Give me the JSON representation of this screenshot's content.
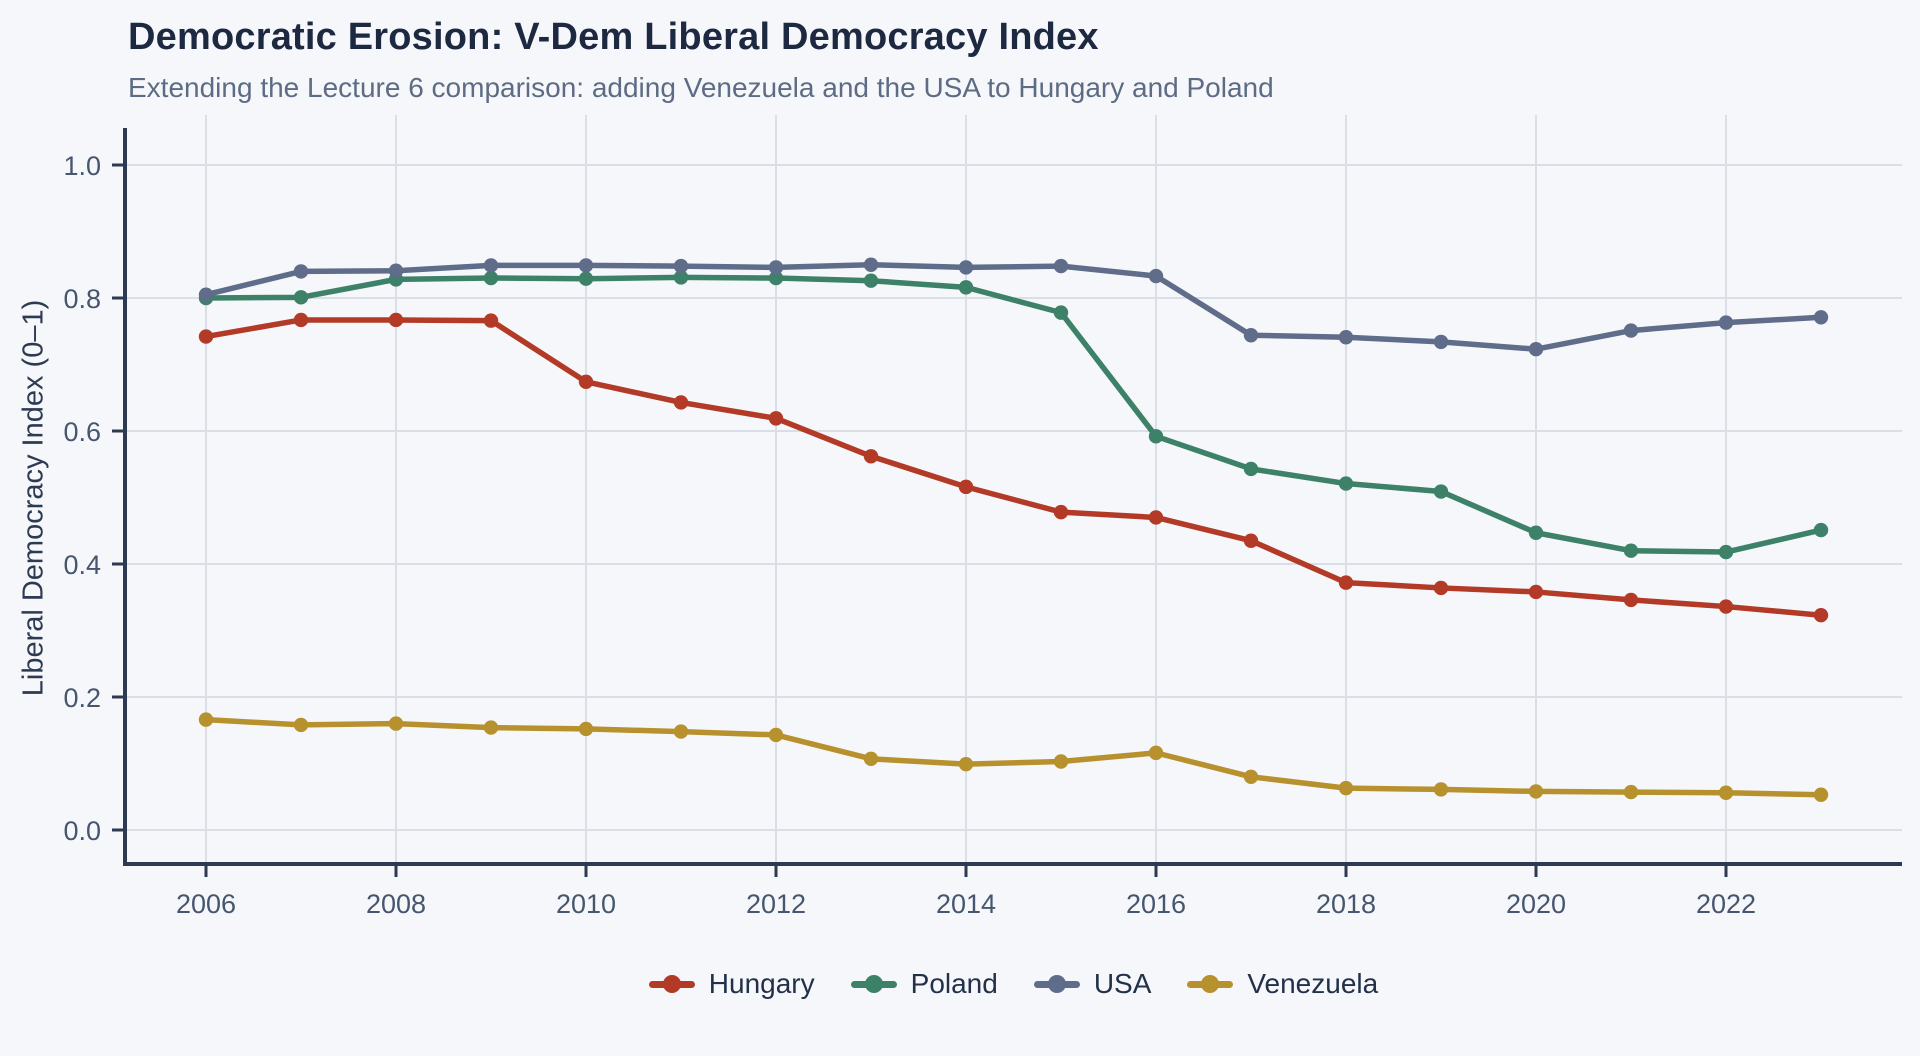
{
  "header": {
    "title": "Democratic Erosion: V-Dem Liberal Democracy Index",
    "subtitle": "Extending the Lecture 6 comparison: adding Venezuela and the USA to Hungary and Poland"
  },
  "page": {
    "background_color": "#f6f7fa",
    "axis_color": "#2c3a52",
    "gridline_color": "#dadee6"
  },
  "chart_data": {
    "type": "line",
    "title": "Democratic Erosion: V-Dem Liberal Democracy Index",
    "subtitle": "Extending the Lecture 6 comparison: adding Venezuela and the USA to Hungary and Poland",
    "xlabel": "",
    "ylabel": "Liberal Democracy Index (0–1)",
    "grid": true,
    "legend_position": "bottom",
    "ylim": [
      0.0,
      1.0
    ],
    "y_ticks": [
      0.0,
      0.2,
      0.4,
      0.6,
      0.8,
      1.0
    ],
    "x_ticks": [
      2006,
      2008,
      2010,
      2012,
      2014,
      2016,
      2018,
      2020,
      2022
    ],
    "x": [
      2006,
      2007,
      2008,
      2009,
      2010,
      2011,
      2012,
      2013,
      2014,
      2015,
      2016,
      2017,
      2018,
      2019,
      2020,
      2021,
      2022,
      2023
    ],
    "series": [
      {
        "name": "Hungary",
        "color": "#b23a27",
        "values": [
          0.742,
          0.767,
          0.767,
          0.766,
          0.674,
          0.643,
          0.619,
          0.562,
          0.516,
          0.478,
          0.47,
          0.435,
          0.372,
          0.364,
          0.358,
          0.346,
          0.336,
          0.323
        ]
      },
      {
        "name": "Poland",
        "color": "#3d8168",
        "values": [
          0.8,
          0.801,
          0.828,
          0.83,
          0.829,
          0.831,
          0.83,
          0.826,
          0.816,
          0.778,
          0.592,
          0.543,
          0.521,
          0.509,
          0.447,
          0.42,
          0.418,
          0.451
        ]
      },
      {
        "name": "USA",
        "color": "#5f6d8a",
        "values": [
          0.805,
          0.84,
          0.841,
          0.849,
          0.849,
          0.848,
          0.846,
          0.85,
          0.846,
          0.848,
          0.833,
          0.744,
          0.741,
          0.734,
          0.723,
          0.751,
          0.763,
          0.771
        ]
      },
      {
        "name": "Venezuela",
        "color": "#b7912e",
        "values": [
          0.166,
          0.158,
          0.16,
          0.154,
          0.152,
          0.148,
          0.143,
          0.107,
          0.099,
          0.103,
          0.116,
          0.08,
          0.063,
          0.061,
          0.058,
          0.057,
          0.056,
          0.053
        ]
      }
    ]
  }
}
